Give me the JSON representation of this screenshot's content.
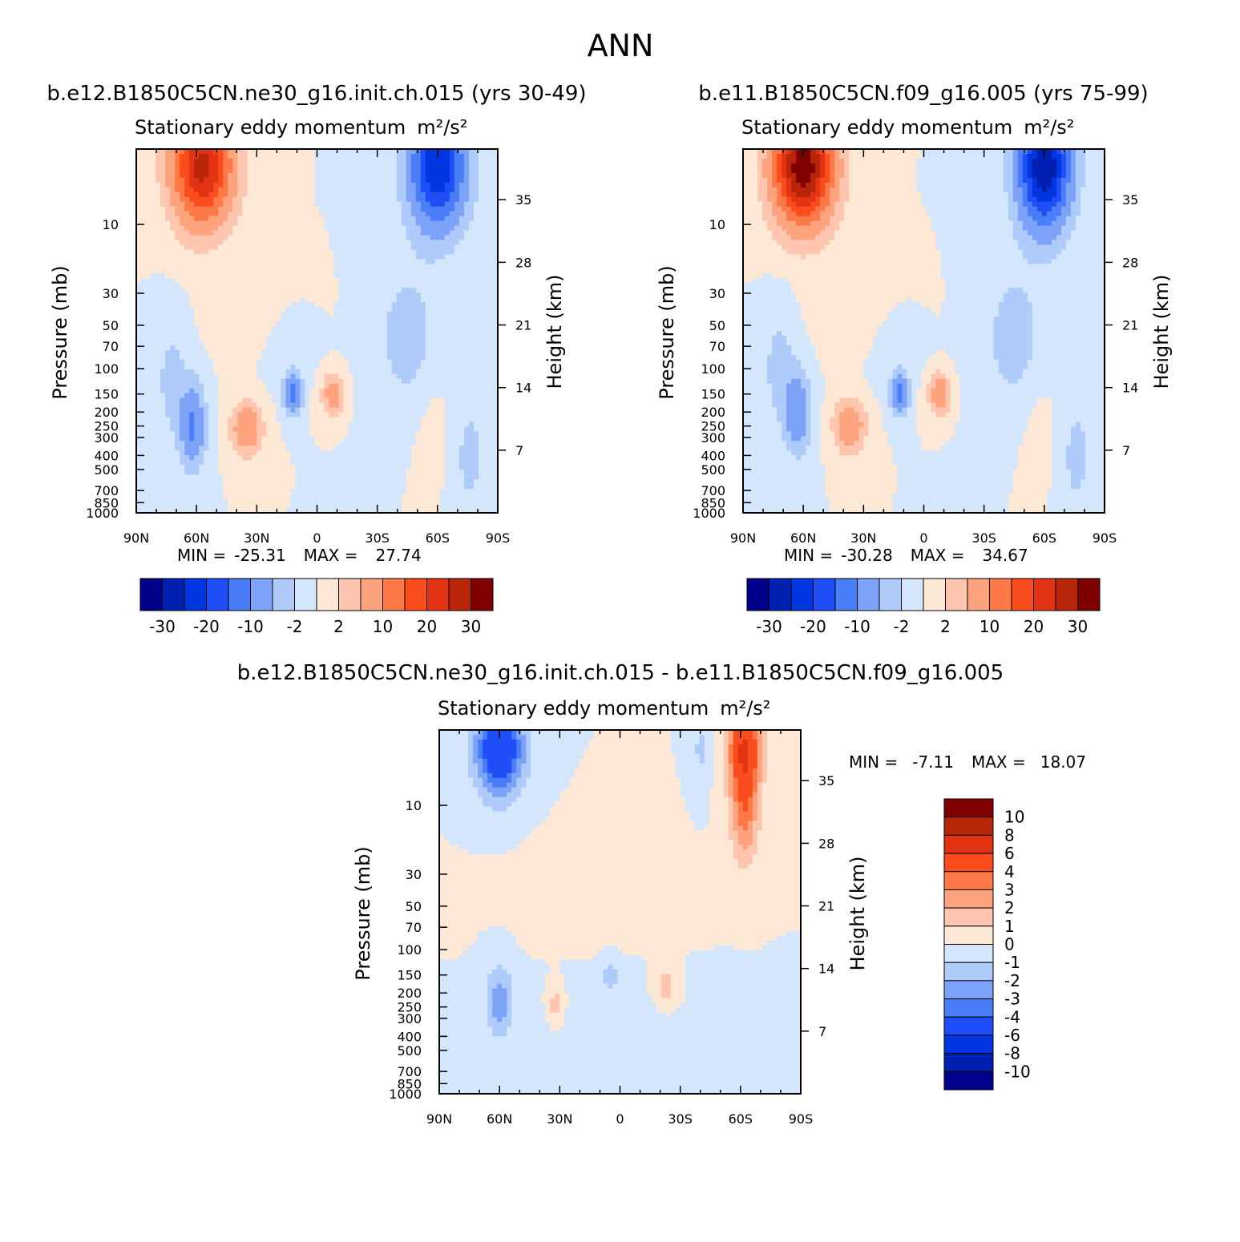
{
  "figure": {
    "title": "ANN"
  },
  "colors": {
    "abs_levels": [
      "#00008b",
      "#0020b2",
      "#0036e0",
      "#1e4ff6",
      "#4a7ef8",
      "#7da3f8",
      "#aecbfa",
      "#d4e6fb",
      "#fde8d6",
      "#fec6ae",
      "#fda47e",
      "#fd7a48",
      "#fa4c1d",
      "#e23412",
      "#b82508",
      "#800000"
    ],
    "diff_levels": [
      "#00008b",
      "#0020b2",
      "#0036e0",
      "#1e4ff6",
      "#4a7ef8",
      "#7da3f8",
      "#aecbfa",
      "#d4e6fb",
      "#fde8d6",
      "#fec6ae",
      "#fda47e",
      "#fd7a48",
      "#fa4c1d",
      "#e23412",
      "#b82508",
      "#800000"
    ]
  },
  "chart_data": [
    {
      "type": "heatmap",
      "case_title": "b.e12.B1850C5CN.ne30_g16.init.ch.015 (yrs 30-49)",
      "subtitle": "Stationary eddy momentum",
      "units": "m²/s²",
      "ylabel": "Pressure (mb)",
      "ylabel_right": "Height (km)",
      "xlim": [
        90,
        -90
      ],
      "x_ticks": [
        "90N",
        "60N",
        "30N",
        "0",
        "30S",
        "60S",
        "90S"
      ],
      "y_ticks": [
        "10",
        "30",
        "50",
        "70",
        "100",
        "150",
        "200",
        "250",
        "300",
        "400",
        "500",
        "700",
        "850",
        "1000"
      ],
      "y_ticks_right": [
        "35",
        "28",
        "21",
        "14",
        "7"
      ],
      "ylim": [
        1000,
        3
      ],
      "stats": {
        "min_label": "MIN =",
        "min": "-25.31",
        "max_label": "MAX =",
        "max": "27.74"
      },
      "colorbar_labels": [
        "-30",
        "-20",
        "-10",
        "-2",
        "2",
        "10",
        "20",
        "30"
      ],
      "features": [
        {
          "lat": 57,
          "p": 4,
          "value": 27,
          "sx": 14,
          "sy": 0.85
        },
        {
          "lat": -60,
          "p": 4,
          "value": -25,
          "sx": 13,
          "sy": 0.9
        },
        {
          "lat": 62,
          "p": 250,
          "value": -11,
          "sx": 6,
          "sy": 0.6
        },
        {
          "lat": 35,
          "p": 260,
          "value": 10,
          "sx": 7,
          "sy": 0.38
        },
        {
          "lat": 12,
          "p": 150,
          "value": -12,
          "sx": 4,
          "sy": 0.3
        },
        {
          "lat": -8,
          "p": 150,
          "value": 8,
          "sx": 5,
          "sy": 0.3
        },
        {
          "lat": 72,
          "p": 120,
          "value": -3,
          "sx": 8,
          "sy": 0.9
        },
        {
          "lat": -45,
          "p": 60,
          "value": -3,
          "sx": 16,
          "sy": 1.2
        },
        {
          "lat": -75,
          "p": 400,
          "value": -2.5,
          "sx": 12,
          "sy": 1.3
        },
        {
          "lat": 15,
          "p": 60,
          "value": -1.5,
          "sx": 12,
          "sy": 0.6
        },
        {
          "lat": 30,
          "p": 40,
          "value": 1.5,
          "sx": 20,
          "sy": 0.6
        },
        {
          "lat": -60,
          "p": 300,
          "value": 1.5,
          "sx": 10,
          "sy": 1.0
        }
      ]
    },
    {
      "type": "heatmap",
      "case_title": "b.e11.B1850C5CN.f09_g16.005 (yrs 75-99)",
      "subtitle": "Stationary eddy momentum",
      "units": "m²/s²",
      "ylabel": "Pressure (mb)",
      "ylabel_right": "Height (km)",
      "xlim": [
        90,
        -90
      ],
      "x_ticks": [
        "90N",
        "60N",
        "30N",
        "0",
        "30S",
        "60S",
        "90S"
      ],
      "y_ticks": [
        "10",
        "30",
        "50",
        "70",
        "100",
        "150",
        "200",
        "250",
        "300",
        "400",
        "500",
        "700",
        "850",
        "1000"
      ],
      "y_ticks_right": [
        "35",
        "28",
        "21",
        "14",
        "7"
      ],
      "ylim": [
        1000,
        3
      ],
      "stats": {
        "min_label": "MIN =",
        "min": "-30.28",
        "max_label": "MAX =",
        "max": "34.67"
      },
      "colorbar_labels": [
        "-30",
        "-20",
        "-10",
        "-2",
        "2",
        "10",
        "20",
        "30"
      ],
      "features": [
        {
          "lat": 60,
          "p": 4,
          "value": 34,
          "sx": 14,
          "sy": 0.85
        },
        {
          "lat": -60,
          "p": 4,
          "value": -30,
          "sx": 12,
          "sy": 0.9
        },
        {
          "lat": 63,
          "p": 200,
          "value": -9,
          "sx": 6,
          "sy": 0.6
        },
        {
          "lat": 37,
          "p": 250,
          "value": 10,
          "sx": 7,
          "sy": 0.38
        },
        {
          "lat": 12,
          "p": 150,
          "value": -12,
          "sx": 4,
          "sy": 0.3
        },
        {
          "lat": -8,
          "p": 150,
          "value": 9,
          "sx": 5,
          "sy": 0.3
        },
        {
          "lat": 72,
          "p": 100,
          "value": -3,
          "sx": 8,
          "sy": 0.9
        },
        {
          "lat": -45,
          "p": 60,
          "value": -3,
          "sx": 16,
          "sy": 1.2
        },
        {
          "lat": -75,
          "p": 400,
          "value": -2.5,
          "sx": 12,
          "sy": 1.3
        },
        {
          "lat": 15,
          "p": 60,
          "value": -1.5,
          "sx": 12,
          "sy": 0.6
        },
        {
          "lat": 30,
          "p": 40,
          "value": 1.5,
          "sx": 20,
          "sy": 0.6
        },
        {
          "lat": -60,
          "p": 300,
          "value": 1.5,
          "sx": 10,
          "sy": 1.0
        }
      ]
    },
    {
      "type": "heatmap",
      "case_title": "b.e12.B1850C5CN.ne30_g16.init.ch.015 - b.e11.B1850C5CN.f09_g16.005",
      "subtitle": "Stationary eddy momentum",
      "units": "m²/s²",
      "ylabel": "Pressure (mb)",
      "ylabel_right": "Height (km)",
      "xlim": [
        90,
        -90
      ],
      "x_ticks": [
        "90N",
        "60N",
        "30N",
        "0",
        "30S",
        "60S",
        "90S"
      ],
      "y_ticks": [
        "10",
        "30",
        "50",
        "70",
        "100",
        "150",
        "200",
        "250",
        "300",
        "400",
        "500",
        "700",
        "850",
        "1000"
      ],
      "y_ticks_right": [
        "35",
        "28",
        "21",
        "14",
        "7"
      ],
      "ylim": [
        1000,
        3
      ],
      "stats": {
        "min_label": "MIN =",
        "min": "-7.11",
        "max_label": "MAX =",
        "max": "18.07"
      },
      "colorbar_labels": [
        "10",
        "8",
        "6",
        "4",
        "3",
        "2",
        "1",
        "0",
        "-1",
        "-2",
        "-3",
        "-4",
        "-6",
        "-8",
        "-10"
      ],
      "features": [
        {
          "lat": 60,
          "p": 4,
          "value": -6,
          "sx": 12,
          "sy": 0.75
        },
        {
          "lat": -62,
          "p": 4,
          "value": 6,
          "sx": 8,
          "sy": 0.75
        },
        {
          "lat": -62,
          "p": 12,
          "value": 3,
          "sx": 7,
          "sy": 0.8
        },
        {
          "lat": 60,
          "p": 230,
          "value": -2.5,
          "sx": 7,
          "sy": 0.6
        },
        {
          "lat": 32,
          "p": 240,
          "value": 1.5,
          "sx": 4,
          "sy": 0.3
        },
        {
          "lat": 5,
          "p": 150,
          "value": -1.5,
          "sx": 4,
          "sy": 0.3
        },
        {
          "lat": -23,
          "p": 180,
          "value": 1.5,
          "sx": 6,
          "sy": 0.35
        },
        {
          "lat": -40,
          "p": 4,
          "value": -1.2,
          "sx": 4,
          "sy": 0.6
        },
        {
          "lat": 10,
          "p": 40,
          "value": 0.6,
          "sx": 35,
          "sy": 0.7
        },
        {
          "lat": 0,
          "p": 500,
          "value": -0.5,
          "sx": 40,
          "sy": 1.0
        }
      ]
    }
  ]
}
